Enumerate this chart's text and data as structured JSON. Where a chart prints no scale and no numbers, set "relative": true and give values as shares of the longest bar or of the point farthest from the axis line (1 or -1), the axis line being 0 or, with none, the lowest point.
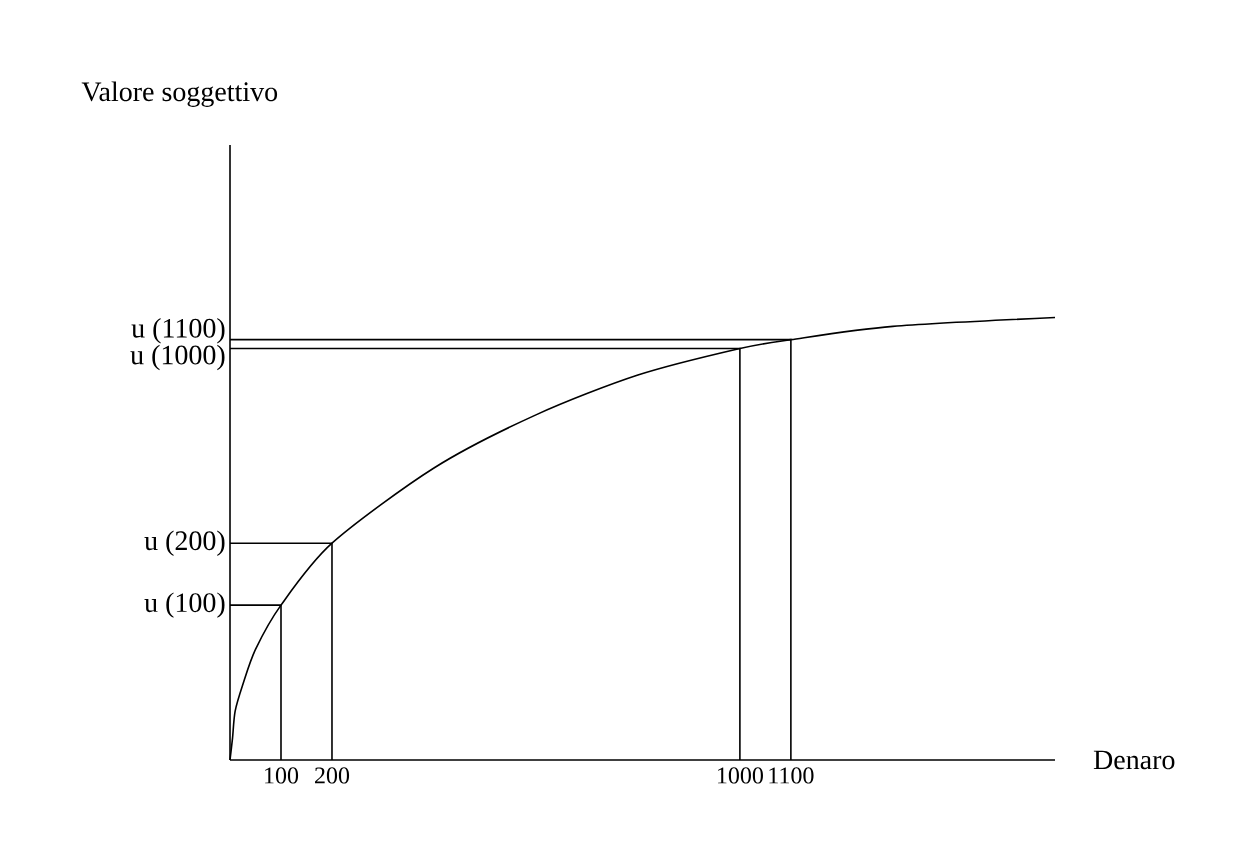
{
  "chart_data": {
    "type": "line",
    "xlabel": "Denaro",
    "relative": true,
    "color": "#000000",
    "x": [
      0,
      5,
      10,
      25,
      50,
      100,
      200,
      400,
      600,
      800,
      1000,
      1100,
      1300,
      1618
    ],
    "values": [
      0,
      0.05,
      0.11,
      0.17,
      0.25,
      0.35,
      0.49,
      0.66,
      0.78,
      0.87,
      0.93,
      0.95,
      0.98,
      1.0
    ],
    "xlim": [
      0,
      1618
    ],
    "xticks": [
      100,
      200,
      1000,
      1100
    ],
    "annotations": [
      "u (100)",
      "u (200)",
      "u (1000)",
      "u (1100)",
      "Valore soggettivo"
    ]
  }
}
